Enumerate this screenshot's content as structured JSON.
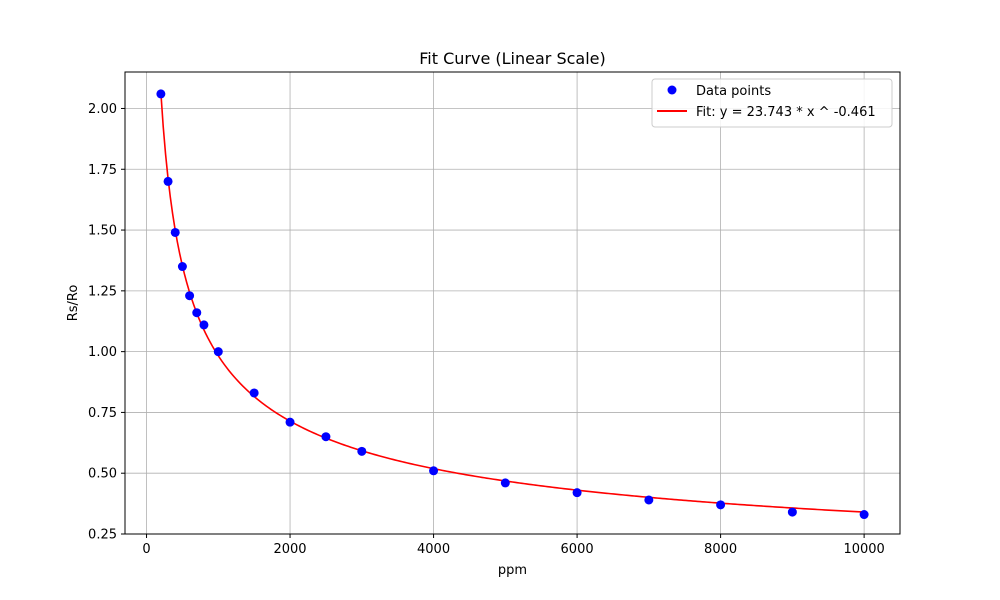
{
  "chart_data": {
    "type": "scatter",
    "title": "Fit Curve (Linear Scale)",
    "xlabel": "ppm",
    "ylabel": "Rs/Ro",
    "xlim": [
      -300,
      10500
    ],
    "ylim": [
      0.25,
      2.15
    ],
    "x_ticks": [
      0,
      2000,
      4000,
      6000,
      8000,
      10000
    ],
    "x_tick_labels": [
      "0",
      "2000",
      "4000",
      "6000",
      "8000",
      "10000"
    ],
    "y_ticks": [
      0.25,
      0.5,
      0.75,
      1.0,
      1.25,
      1.5,
      1.75,
      2.0
    ],
    "y_tick_labels": [
      "0.25",
      "0.50",
      "0.75",
      "1.00",
      "1.25",
      "1.50",
      "1.75",
      "2.00"
    ],
    "grid": true,
    "legend_position": "top-right",
    "series": [
      {
        "name": "Data points",
        "kind": "scatter",
        "color": "#0000ff",
        "x": [
          200,
          300,
          400,
          500,
          600,
          700,
          800,
          1000,
          1500,
          2000,
          2500,
          3000,
          4000,
          5000,
          6000,
          7000,
          8000,
          9000,
          10000
        ],
        "y": [
          2.06,
          1.7,
          1.49,
          1.35,
          1.23,
          1.16,
          1.11,
          1.0,
          0.83,
          0.71,
          0.65,
          0.59,
          0.51,
          0.46,
          0.42,
          0.39,
          0.37,
          0.34,
          0.33
        ]
      },
      {
        "name": "Fit: y = 23.743 * x ^ -0.461",
        "kind": "line",
        "color": "#ff0000",
        "function": {
          "a": 23.743,
          "b": -0.461
        },
        "x_range": [
          200,
          10000
        ]
      }
    ]
  }
}
